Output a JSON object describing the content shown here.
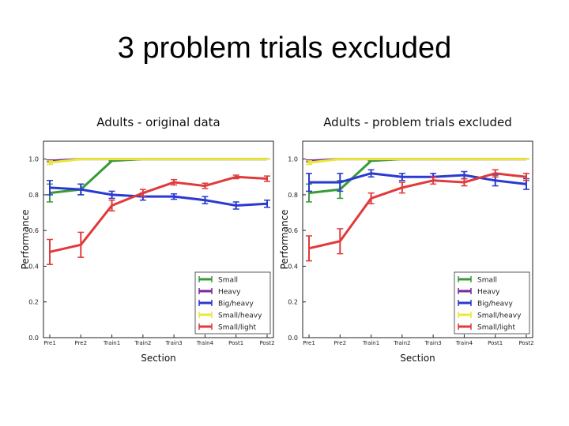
{
  "slide_title": "3 problem trials excluded",
  "colors": {
    "Small": "#3a9a3a",
    "Heavy": "#7a2a9a",
    "Big/heavy": "#2a3ad0",
    "Small/heavy": "#e8e838",
    "Small/light": "#e03a3a"
  },
  "chart_data": [
    {
      "type": "line",
      "title": "Adults - original data",
      "xlabel": "Section",
      "ylabel": "Performance",
      "categories": [
        "Pre1",
        "Pre2",
        "Train1",
        "Train2",
        "Train3",
        "Train4",
        "Post1",
        "Post2"
      ],
      "yticks": [
        "0.0",
        "0.2",
        "0.4",
        "0.6",
        "0.8",
        "1.0"
      ],
      "ylim": [
        0,
        1.1
      ],
      "legend_position": "lower-right",
      "series": [
        {
          "name": "Small",
          "values": [
            0.81,
            0.83,
            0.99,
            1.0,
            1.0,
            1.0,
            1.0,
            1.0
          ],
          "errors": [
            0.05,
            0.03,
            0.0,
            0.0,
            0.0,
            0.0,
            0.0,
            0.0
          ]
        },
        {
          "name": "Heavy",
          "values": [
            0.99,
            1.0,
            1.0,
            1.0,
            1.0,
            1.0,
            1.0,
            1.0
          ],
          "errors": [
            0.005,
            0.0,
            0.0,
            0.0,
            0.0,
            0.0,
            0.0,
            0.0
          ]
        },
        {
          "name": "Big/heavy",
          "values": [
            0.84,
            0.83,
            0.8,
            0.79,
            0.79,
            0.77,
            0.74,
            0.75
          ],
          "errors": [
            0.04,
            0.03,
            0.02,
            0.02,
            0.015,
            0.02,
            0.02,
            0.02
          ]
        },
        {
          "name": "Small/heavy",
          "values": [
            0.98,
            1.0,
            1.0,
            1.0,
            1.0,
            1.0,
            1.0,
            1.0
          ],
          "errors": [
            0.01,
            0.0,
            0.0,
            0.0,
            0.0,
            0.0,
            0.0,
            0.0
          ]
        },
        {
          "name": "Small/light",
          "values": [
            0.48,
            0.52,
            0.74,
            0.81,
            0.87,
            0.85,
            0.9,
            0.89
          ],
          "errors": [
            0.07,
            0.07,
            0.03,
            0.02,
            0.015,
            0.015,
            0.01,
            0.015
          ]
        }
      ]
    },
    {
      "type": "line",
      "title": "Adults - problem trials excluded",
      "xlabel": "Section",
      "ylabel": "Performance",
      "categories": [
        "Pre1",
        "Pre2",
        "Train1",
        "Train2",
        "Train3",
        "Train4",
        "Post1",
        "Post2"
      ],
      "yticks": [
        "0.0",
        "0.2",
        "0.4",
        "0.6",
        "0.8",
        "1.0"
      ],
      "ylim": [
        0,
        1.1
      ],
      "legend_position": "lower-right",
      "series": [
        {
          "name": "Small",
          "values": [
            0.81,
            0.83,
            0.99,
            1.0,
            1.0,
            1.0,
            1.0,
            1.0
          ],
          "errors": [
            0.05,
            0.05,
            0.0,
            0.0,
            0.0,
            0.0,
            0.0,
            0.0
          ]
        },
        {
          "name": "Heavy",
          "values": [
            0.99,
            1.0,
            1.0,
            1.0,
            1.0,
            1.0,
            1.0,
            1.0
          ],
          "errors": [
            0.005,
            0.0,
            0.0,
            0.0,
            0.0,
            0.0,
            0.0,
            0.0
          ]
        },
        {
          "name": "Big/heavy",
          "values": [
            0.87,
            0.87,
            0.92,
            0.9,
            0.9,
            0.91,
            0.88,
            0.86
          ],
          "errors": [
            0.05,
            0.05,
            0.02,
            0.02,
            0.02,
            0.02,
            0.03,
            0.03
          ]
        },
        {
          "name": "Small/heavy",
          "values": [
            0.98,
            1.0,
            1.0,
            1.0,
            1.0,
            1.0,
            1.0,
            1.0
          ],
          "errors": [
            0.01,
            0.0,
            0.0,
            0.0,
            0.0,
            0.0,
            0.0,
            0.0
          ]
        },
        {
          "name": "Small/light",
          "values": [
            0.5,
            0.54,
            0.78,
            0.84,
            0.88,
            0.87,
            0.92,
            0.9
          ],
          "errors": [
            0.07,
            0.07,
            0.03,
            0.03,
            0.02,
            0.02,
            0.02,
            0.02
          ]
        }
      ]
    }
  ]
}
